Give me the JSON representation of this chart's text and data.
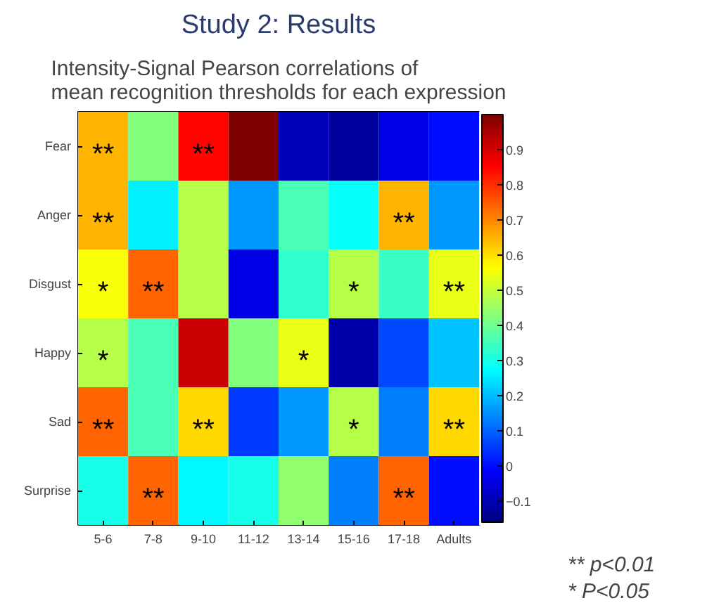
{
  "chart_data": {
    "type": "heatmap",
    "title": "Study 2: Results",
    "subtitle": "Intensity-Signal Pearson correlations of\nmean recognition thresholds for each expression",
    "categories": [
      "5-6",
      "7-8",
      "9-10",
      "11-12",
      "13-14",
      "15-16",
      "17-18",
      "Adults"
    ],
    "y_categories": [
      "Fear",
      "Anger",
      "Disgust",
      "Happy",
      "Sad",
      "Surprise"
    ],
    "cells": [
      [
        0.65,
        0.42,
        0.85,
        1.0,
        -0.09,
        -0.12,
        -0.04,
        0.0
      ],
      [
        0.65,
        0.26,
        0.48,
        0.16,
        0.36,
        0.28,
        0.65,
        0.16
      ],
      [
        0.56,
        0.74,
        0.48,
        -0.04,
        0.33,
        0.48,
        0.34,
        0.54
      ],
      [
        0.48,
        0.36,
        0.91,
        0.42,
        0.54,
        -0.11,
        0.07,
        0.21
      ],
      [
        0.74,
        0.36,
        0.61,
        0.05,
        0.16,
        0.48,
        0.13,
        0.61
      ],
      [
        0.3,
        0.74,
        0.27,
        0.3,
        0.44,
        0.13,
        0.74,
        0.0
      ]
    ],
    "cell_labels": [
      [
        "**",
        null,
        "**",
        null,
        null,
        null,
        null,
        null
      ],
      [
        "**",
        null,
        null,
        null,
        null,
        null,
        "**",
        null
      ],
      [
        "*",
        "**",
        null,
        null,
        null,
        "*",
        null,
        "**"
      ],
      [
        "*",
        null,
        null,
        null,
        "*",
        null,
        null,
        null
      ],
      [
        "**",
        null,
        "**",
        null,
        null,
        "*",
        null,
        "**"
      ],
      [
        null,
        "**",
        null,
        null,
        null,
        null,
        "**",
        null
      ]
    ],
    "clim": [
      -0.16,
      1.0
    ],
    "cticks": [
      -0.1,
      0,
      0.1,
      0.2,
      0.3,
      0.4,
      0.5,
      0.6,
      0.7,
      0.8,
      0.9
    ],
    "annotations": [
      "** p<0.01",
      "*  P<0.05"
    ]
  }
}
